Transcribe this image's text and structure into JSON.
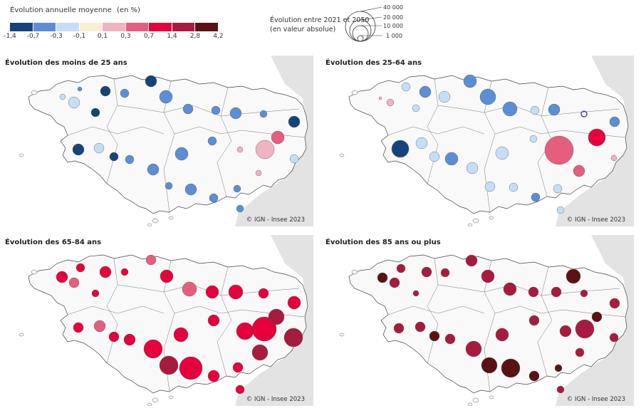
{
  "legend": {
    "title": "Évolution annuelle moyenne",
    "unit": "(en %)",
    "colors": [
      "#16447a",
      "#5b8ed4",
      "#c5def6",
      "#fbeed2",
      "#efb3c1",
      "#e55e7d",
      "#e6003c",
      "#a91a3f",
      "#5a1212"
    ],
    "ticks": [
      "-1,4",
      "-0,7",
      "-0,3",
      "-0,1",
      "0,1",
      "0,3",
      "0,7",
      "1,4",
      "2,8",
      "4,2"
    ]
  },
  "size_legend": {
    "title_line1": "Évolution entre 2021 et 2050",
    "title_line2": "(en valeur absolue)",
    "values": [
      "40 000",
      "20 000",
      "10 000",
      "1 000"
    ]
  },
  "panels": [
    {
      "title": "Évolution des moins de 25 ans",
      "credit": "© IGN - Insee 2023"
    },
    {
      "title": "Évolution des 25-64 ans",
      "credit": "© IGN - Insee 2023"
    },
    {
      "title": "Évolution des 65-84 ans",
      "credit": "© IGN - Insee 2023"
    },
    {
      "title": "Évolution des 85 ans ou plus",
      "credit": "© IGN - Insee 2023"
    }
  ]
}
